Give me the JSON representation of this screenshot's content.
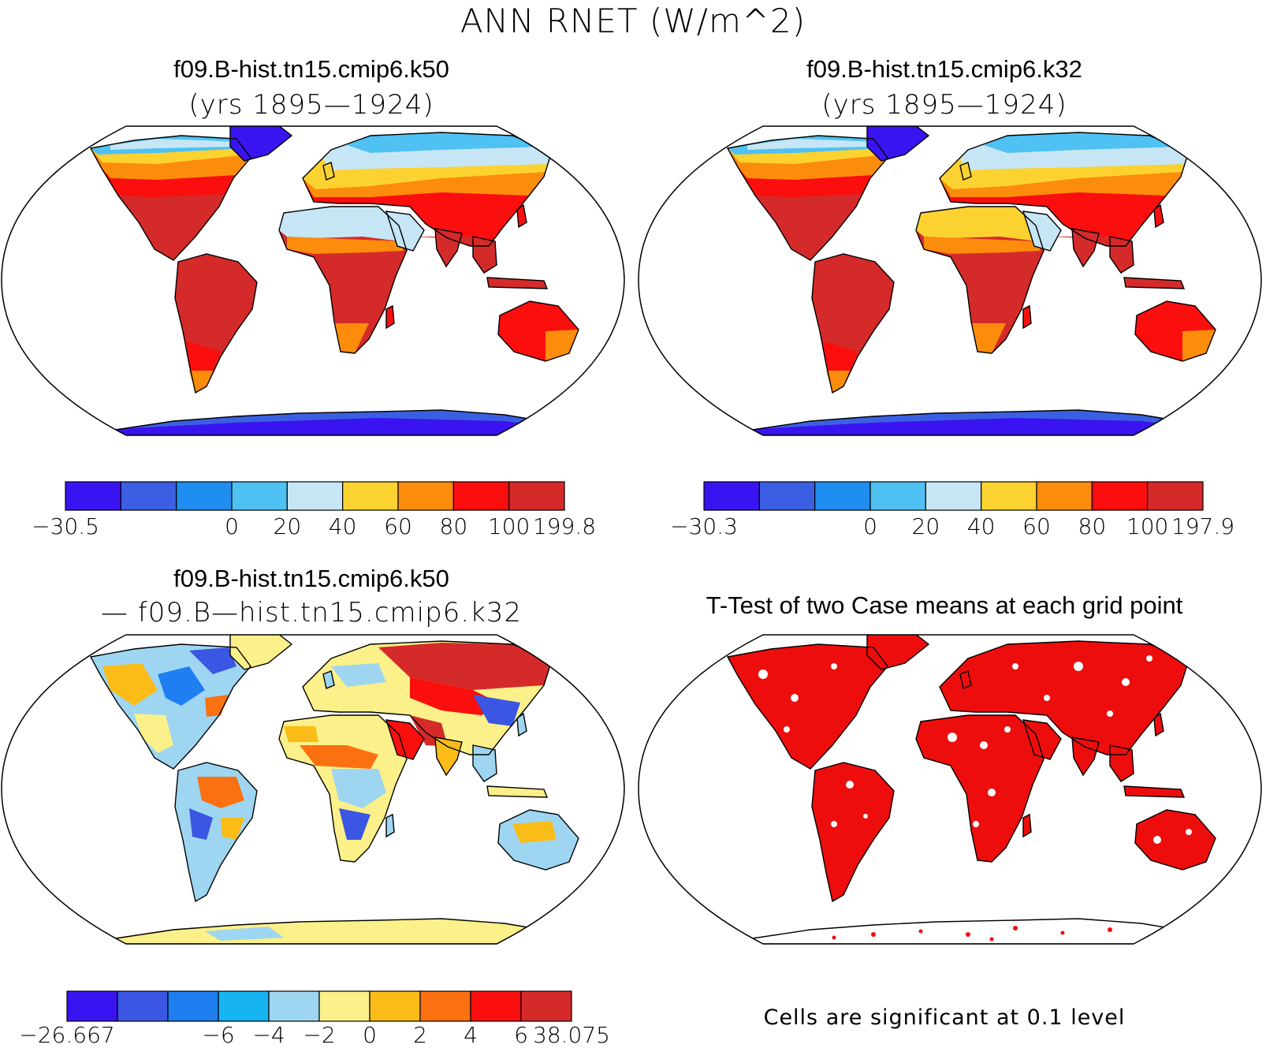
{
  "title": "ANN RNET (W/m^2)",
  "colors": {
    "mean_scale": [
      "#3a14f0",
      "#3b5fe2",
      "#1f8ef0",
      "#4fc1f2",
      "#c6e6f6",
      "#fcd230",
      "#fc8c0c",
      "#fb0e0e",
      "#d52a2a"
    ],
    "diff_scale": [
      "#3a14f0",
      "#3b56e2",
      "#1f7ef0",
      "#17b4f2",
      "#9ed6f2",
      "#fbf089",
      "#fbbc18",
      "#fb7010",
      "#fb0e0e",
      "#d52a2a"
    ],
    "significant": "#ee0d0d"
  },
  "panels": {
    "case1": {
      "name": "f09.B-hist.tn15.cmip6.k50",
      "years": "(yrs 1895—1924)",
      "colorbar": {
        "labels": [
          "−30.5",
          "0",
          "20",
          "40",
          "60",
          "80",
          "100",
          "199.8"
        ]
      }
    },
    "case2": {
      "name": "f09.B-hist.tn15.cmip6.k32",
      "years": "(yrs 1895—1924)",
      "colorbar": {
        "labels": [
          "−30.3",
          "0",
          "20",
          "40",
          "60",
          "80",
          "100",
          "197.9"
        ]
      }
    },
    "diff": {
      "name": "f09.B-hist.tn15.cmip6.k50",
      "name2": "— f09.B—hist.tn15.cmip6.k32",
      "colorbar": {
        "labels": [
          "−26.667",
          "−6",
          "−4",
          "−2",
          "0",
          "2",
          "4",
          "6",
          "38.075"
        ]
      }
    },
    "ttest": {
      "title": "T-Test of two Case means at each grid point",
      "note": "Cells are significant at 0.1 level"
    }
  }
}
